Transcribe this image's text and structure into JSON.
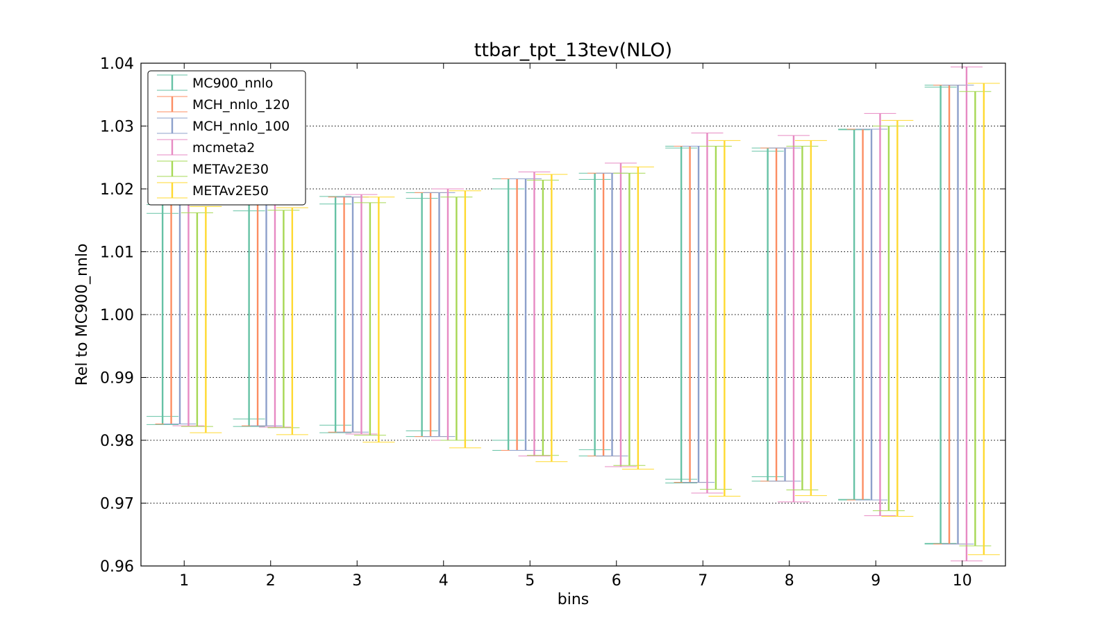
{
  "chart_data": {
    "type": "errorbar",
    "title": "ttbar_tpt_13tev(NLO)",
    "xlabel": "bins",
    "ylabel": "Rel to MC900_nnlo",
    "ylim": [
      0.96,
      1.04
    ],
    "xlim": [
      0.5,
      10.5
    ],
    "yticks": [
      "0.96",
      "0.97",
      "0.98",
      "0.99",
      "1.00",
      "1.01",
      "1.02",
      "1.03",
      "1.04"
    ],
    "xticks": [
      "1",
      "2",
      "3",
      "4",
      "5",
      "6",
      "7",
      "8",
      "9",
      "10"
    ],
    "grid": "y-dotted",
    "legend_position": "top-left",
    "series": [
      {
        "name": "MC900_nnlo",
        "color": "#66c2a5",
        "bins": [
          {
            "bin": 1,
            "low": 0.9825,
            "high": 1.0175,
            "low_inner": 0.9838,
            "high_inner": 1.0161
          },
          {
            "bin": 2,
            "low": 0.9822,
            "high": 1.0178,
            "low_inner": 0.9834,
            "high_inner": 1.0165
          },
          {
            "bin": 3,
            "low": 0.9812,
            "high": 1.0188,
            "low_inner": 0.9824,
            "high_inner": 1.0176
          },
          {
            "bin": 4,
            "low": 0.9806,
            "high": 1.0194,
            "low_inner": 0.9815,
            "high_inner": 1.0185
          },
          {
            "bin": 5,
            "low": 0.9784,
            "high": 1.0216,
            "low_inner": 0.98,
            "high_inner": 1.02
          },
          {
            "bin": 6,
            "low": 0.9775,
            "high": 1.0225,
            "low_inner": 0.9785,
            "high_inner": 1.0215
          },
          {
            "bin": 7,
            "low": 0.9732,
            "high": 1.0268,
            "low_inner": 0.9738,
            "high_inner": 1.0265
          },
          {
            "bin": 8,
            "low": 0.9735,
            "high": 1.0265,
            "low_inner": 0.9742,
            "high_inner": 1.026
          },
          {
            "bin": 9,
            "low": 0.9705,
            "high": 1.0295,
            "low_inner": 0.9706,
            "high_inner": 1.0294
          },
          {
            "bin": 10,
            "low": 0.9635,
            "high": 1.0365,
            "low_inner": 0.9636,
            "high_inner": 1.0362
          }
        ]
      },
      {
        "name": "MCH_nnlo_120",
        "color": "#fc8d62",
        "bins": [
          {
            "bin": 1,
            "low": 0.9826,
            "high": 1.0178
          },
          {
            "bin": 2,
            "low": 0.9823,
            "high": 1.0177
          },
          {
            "bin": 3,
            "low": 0.9813,
            "high": 1.0187
          },
          {
            "bin": 4,
            "low": 0.9806,
            "high": 1.0194
          },
          {
            "bin": 5,
            "low": 0.9784,
            "high": 1.0216
          },
          {
            "bin": 6,
            "low": 0.9775,
            "high": 1.0225
          },
          {
            "bin": 7,
            "low": 0.9733,
            "high": 1.0268
          },
          {
            "bin": 8,
            "low": 0.9735,
            "high": 1.0265
          },
          {
            "bin": 9,
            "low": 0.9705,
            "high": 1.0295
          },
          {
            "bin": 10,
            "low": 0.9635,
            "high": 1.0365
          }
        ]
      },
      {
        "name": "MCH_nnlo_100",
        "color": "#8da0cb",
        "bins": [
          {
            "bin": 1,
            "low": 0.9826,
            "high": 1.0178
          },
          {
            "bin": 2,
            "low": 0.9823,
            "high": 1.0177
          },
          {
            "bin": 3,
            "low": 0.9813,
            "high": 1.0187
          },
          {
            "bin": 4,
            "low": 0.9806,
            "high": 1.0194
          },
          {
            "bin": 5,
            "low": 0.9784,
            "high": 1.0216
          },
          {
            "bin": 6,
            "low": 0.9775,
            "high": 1.0225
          },
          {
            "bin": 7,
            "low": 0.9733,
            "high": 1.0268
          },
          {
            "bin": 8,
            "low": 0.9735,
            "high": 1.0265
          },
          {
            "bin": 9,
            "low": 0.9705,
            "high": 1.0295
          },
          {
            "bin": 10,
            "low": 0.9635,
            "high": 1.0365
          }
        ]
      },
      {
        "name": "mcmeta2",
        "color": "#e78ac3",
        "bins": [
          {
            "bin": 1,
            "low": 0.9823,
            "high": 1.018
          },
          {
            "bin": 2,
            "low": 0.9821,
            "high": 1.018
          },
          {
            "bin": 3,
            "low": 0.981,
            "high": 1.0191
          },
          {
            "bin": 4,
            "low": 0.98,
            "high": 1.02
          },
          {
            "bin": 5,
            "low": 0.9775,
            "high": 1.0227
          },
          {
            "bin": 6,
            "low": 0.9758,
            "high": 1.0241
          },
          {
            "bin": 7,
            "low": 0.9716,
            "high": 1.0289
          },
          {
            "bin": 8,
            "low": 0.9702,
            "high": 1.0285
          },
          {
            "bin": 9,
            "low": 0.968,
            "high": 1.032
          },
          {
            "bin": 10,
            "low": 0.9608,
            "high": 1.0394
          }
        ]
      },
      {
        "name": "METAv2E30",
        "color": "#a6d854",
        "bins": [
          {
            "bin": 1,
            "low": 0.9822,
            "high": 1.0162
          },
          {
            "bin": 2,
            "low": 0.982,
            "high": 1.0166
          },
          {
            "bin": 3,
            "low": 0.9808,
            "high": 1.0178
          },
          {
            "bin": 4,
            "low": 0.98,
            "high": 1.0187
          },
          {
            "bin": 5,
            "low": 0.9776,
            "high": 1.0214
          },
          {
            "bin": 6,
            "low": 0.976,
            "high": 1.0225
          },
          {
            "bin": 7,
            "low": 0.9722,
            "high": 1.0268
          },
          {
            "bin": 8,
            "low": 0.9721,
            "high": 1.0268
          },
          {
            "bin": 9,
            "low": 0.9688,
            "high": 1.03
          },
          {
            "bin": 10,
            "low": 0.9632,
            "high": 1.0355
          }
        ]
      },
      {
        "name": "METAv2E50",
        "color": "#ffd92f",
        "bins": [
          {
            "bin": 1,
            "low": 0.9812,
            "high": 1.0172
          },
          {
            "bin": 2,
            "low": 0.9809,
            "high": 1.017
          },
          {
            "bin": 3,
            "low": 0.9797,
            "high": 1.0187
          },
          {
            "bin": 4,
            "low": 0.9788,
            "high": 1.0197
          },
          {
            "bin": 5,
            "low": 0.9766,
            "high": 1.0223
          },
          {
            "bin": 6,
            "low": 0.9754,
            "high": 1.0235
          },
          {
            "bin": 7,
            "low": 0.9711,
            "high": 1.0277
          },
          {
            "bin": 8,
            "low": 0.9712,
            "high": 1.0277
          },
          {
            "bin": 9,
            "low": 0.9679,
            "high": 1.0309
          },
          {
            "bin": 10,
            "low": 0.9618,
            "high": 1.0368
          }
        ]
      }
    ]
  }
}
